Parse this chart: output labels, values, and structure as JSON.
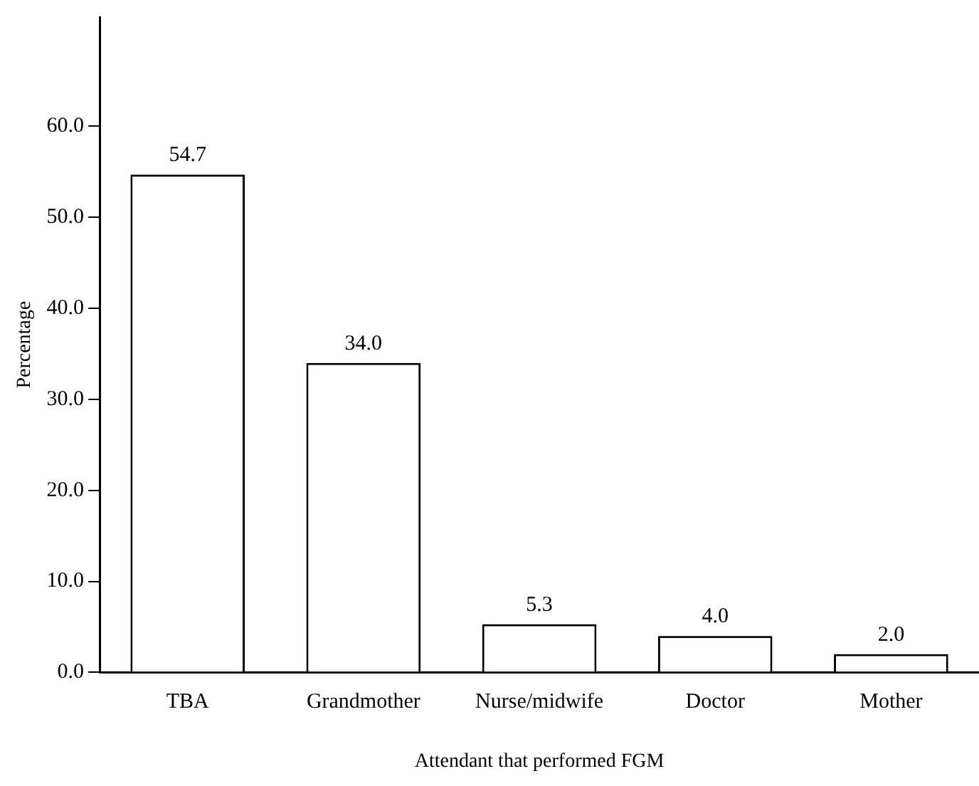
{
  "chart_data": {
    "type": "bar",
    "xlabel": "Attendant that performed FGM",
    "ylabel": "Percentage",
    "categories": [
      "TBA",
      "Grandmother",
      "Nurse/midwife",
      "Doctor",
      "Mother"
    ],
    "values": [
      54.7,
      34.0,
      5.3,
      4.0,
      2.0
    ],
    "value_labels": [
      "54.7",
      "34.0",
      "5.3",
      "4.0",
      "2.0"
    ],
    "color": "#ffffff",
    "ylim": [
      0,
      72
    ],
    "yticks": [
      {
        "value": 0,
        "label": "0.0"
      },
      {
        "value": 10,
        "label": "10.0"
      },
      {
        "value": 20,
        "label": "20.0"
      },
      {
        "value": 30,
        "label": "30.0"
      },
      {
        "value": 40,
        "label": "40.0"
      },
      {
        "value": 50,
        "label": "50.0"
      },
      {
        "value": 60,
        "label": "60.0"
      }
    ],
    "grid": false,
    "legend": false
  }
}
